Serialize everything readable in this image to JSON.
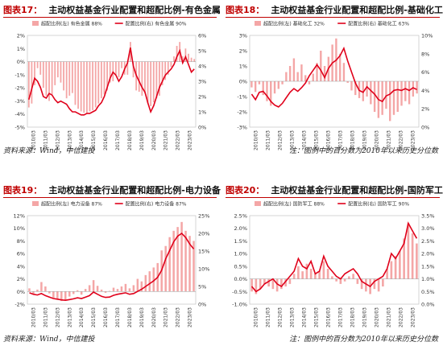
{
  "page": {
    "source_text_left": "资料来源：Wind，中信建投",
    "note_text_right": "注：图例中的百分数为2010年以来历史分位数",
    "source_text_left2": "资料来源：Wind，中信建投",
    "note_text_right2": "注：图例中的百分数为2010年以来历史分位数"
  },
  "panels": [
    {
      "num": "图表17：",
      "title": "主动权益基金行业配置和超配比例-有色金属"
    },
    {
      "num": "图表18：",
      "title": "主动权益基金行业配置和超配比例-基础化工"
    },
    {
      "num": "图表19：",
      "title": "主动权益基金行业配置和超配比例-电力设备"
    },
    {
      "num": "图表20：",
      "title": "主动权益基金行业配置和超配比例-国防军工"
    }
  ],
  "colors": {
    "bar": "#f4a6a6",
    "line": "#e0001a",
    "title_red": "#c00000"
  },
  "chart_data": [
    {
      "type": "bar+line",
      "x_ticks": [
        "2010/03",
        "2011/03",
        "2012/03",
        "2013/03",
        "2014/03",
        "2015/03",
        "2016/03",
        "2017/03",
        "2018/03",
        "2019/03",
        "2020/03",
        "2021/03",
        "2022/03",
        "2023/03"
      ],
      "series": [
        {
          "name": "超配比例(左) 有色金属 88%",
          "axis": "left",
          "type": "bar",
          "values": [
            -3.5,
            -3.2,
            -1.8,
            -0.5,
            -1.0,
            -2.0,
            -2.6,
            -3.0,
            -2.5,
            -1.8,
            -1.2,
            -1.6,
            -2.2,
            -2.8,
            -2.6,
            -2.4,
            -3.3,
            -3.6,
            -3.8,
            -3.9,
            -3.9,
            -3.8,
            -3.7,
            -3.5,
            -3.2,
            -2.8,
            -2.5,
            -2.2,
            -1.6,
            -1.5,
            -1.0,
            -1.2,
            -0.5,
            -1.0,
            -1.0,
            1.5,
            -1.2,
            -2.2,
            -2.3,
            -2.6,
            -2.4,
            -3.2,
            -3.4,
            -3.1,
            -2.8,
            -2.6,
            -1.8,
            -1.4,
            -1.0,
            -0.4,
            0.4,
            1.2,
            1.5,
            0.4,
            1.0,
            0.6,
            0.3,
            0.2
          ]
        },
        {
          "name": "配置比例(右) 有色金属 90%",
          "axis": "right",
          "type": "line",
          "values": [
            1.8,
            2.5,
            3.2,
            3.0,
            2.6,
            2.0,
            1.9,
            2.2,
            2.1,
            1.8,
            1.6,
            1.7,
            1.6,
            1.5,
            1.2,
            1.0,
            1.0,
            0.9,
            0.8,
            0.8,
            0.9,
            0.9,
            1.0,
            1.1,
            1.4,
            1.6,
            2.0,
            2.6,
            3.2,
            3.6,
            3.4,
            3.0,
            3.3,
            3.8,
            4.2,
            5.2,
            4.0,
            3.4,
            3.0,
            2.6,
            2.3,
            1.6,
            1.0,
            1.4,
            2.0,
            2.6,
            3.0,
            3.4,
            3.6,
            3.8,
            4.1,
            4.6,
            5.0,
            4.2,
            4.6,
            4.1,
            3.6,
            3.8
          ]
        }
      ],
      "ylim_left": [
        -5,
        2
      ],
      "ylim_right": [
        0,
        6
      ],
      "yticks_left": [
        "-5%",
        "-4%",
        "-3%",
        "-2%",
        "-1%",
        "0%",
        "1%",
        "2%"
      ],
      "yticks_right": [
        "0%",
        "1%",
        "2%",
        "3%",
        "4%",
        "5%",
        "6%"
      ]
    },
    {
      "type": "bar+line",
      "x_ticks": [
        "2010/03",
        "2011/03",
        "2012/03",
        "2013/03",
        "2014/03",
        "2015/03",
        "2016/03",
        "2017/03",
        "2018/03",
        "2019/03",
        "2020/03",
        "2021/03",
        "2022/03",
        "2023/03"
      ],
      "series": [
        {
          "name": "超配比例(左) 基础化工 32%",
          "axis": "left",
          "type": "bar",
          "values": [
            -0.4,
            -0.7,
            -0.2,
            -0.9,
            -1.3,
            -1.6,
            -0.8,
            -0.5,
            -0.2,
            0.6,
            1.0,
            1.5,
            0.6,
            1.1,
            0.4,
            -0.2,
            0.5,
            1.2,
            2.0,
            1.0,
            1.6,
            2.4,
            2.8,
            1.8,
            1.2,
            -0.1,
            -0.6,
            -0.9,
            -1.1,
            -1.3,
            -1.0,
            -1.5,
            -2.0,
            -2.4,
            -2.2,
            -1.8,
            -2.6,
            -2.2,
            -2.0,
            -1.6,
            -1.3,
            -1.5,
            -1.0,
            -0.8
          ]
        },
        {
          "name": "配置比例(右) 基础化工 63%",
          "axis": "right",
          "type": "line",
          "values": [
            3.6,
            3.0,
            3.8,
            3.9,
            3.4,
            2.8,
            2.4,
            2.2,
            2.6,
            3.2,
            3.8,
            4.2,
            3.9,
            4.3,
            4.8,
            5.6,
            6.2,
            6.8,
            6.2,
            5.4,
            6.4,
            7.0,
            7.3,
            7.8,
            8.6,
            7.2,
            6.0,
            4.8,
            4.0,
            3.8,
            4.4,
            4.0,
            3.6,
            3.0,
            2.8,
            3.4,
            3.6,
            4.0,
            4.1,
            4.0,
            4.2,
            4.0,
            4.3,
            4.1
          ]
        }
      ],
      "ylim_left": [
        -3,
        3
      ],
      "ylim_right": [
        0,
        10
      ],
      "yticks_left": [
        "-3%",
        "-2%",
        "-1%",
        "0%",
        "1%",
        "2%",
        "3%"
      ],
      "yticks_right": [
        "0%",
        "2%",
        "4%",
        "6%",
        "8%",
        "10%"
      ]
    },
    {
      "type": "bar+line",
      "x_ticks": [
        "2010/03",
        "2011/03",
        "2012/03",
        "2013/03",
        "2014/03",
        "2015/03",
        "2016/03",
        "2017/03",
        "2018/03",
        "2019/03",
        "2020/03",
        "2021/03",
        "2022/03",
        "2023/03"
      ],
      "series": [
        {
          "name": "超配比例(左) 电力设备 87%",
          "axis": "left",
          "type": "bar",
          "values": [
            0.5,
            -0.5,
            0.3,
            1.5,
            0.8,
            -0.3,
            -1.0,
            -1.2,
            -1.5,
            -1.3,
            -0.8,
            -0.4,
            0.2,
            -0.5,
            0.4,
            1.0,
            1.8,
            0.9,
            0.3,
            -0.2,
            0.1,
            0.6,
            0.4,
            0.8,
            1.2,
            0.5,
            1.0,
            2.0,
            1.6,
            2.6,
            3.2,
            3.8,
            4.5,
            6.5,
            7.2,
            8.6,
            9.6,
            10.2,
            11.0,
            9.6,
            8.8,
            8.0
          ]
        },
        {
          "name": "配置比例(右) 电力设备 87%",
          "axis": "right",
          "type": "line",
          "values": [
            3.2,
            2.8,
            2.6,
            3.0,
            2.4,
            2.0,
            1.6,
            1.4,
            1.2,
            1.1,
            1.3,
            1.5,
            1.8,
            1.6,
            2.0,
            2.4,
            3.4,
            2.8,
            2.2,
            1.9,
            2.0,
            2.5,
            2.8,
            3.0,
            3.2,
            2.8,
            3.0,
            3.6,
            4.2,
            5.0,
            5.8,
            6.6,
            7.6,
            9.6,
            12.8,
            15.2,
            17.6,
            19.2,
            20.0,
            18.8,
            17.0,
            15.6
          ]
        }
      ],
      "ylim_left": [
        -2,
        12
      ],
      "ylim_right": [
        0,
        25
      ],
      "yticks_left": [
        "-2%",
        "0%",
        "2%",
        "4%",
        "6%",
        "8%",
        "10%",
        "12%"
      ],
      "yticks_right": [
        "0%",
        "5%",
        "10%",
        "15%",
        "20%",
        "25%"
      ]
    },
    {
      "type": "bar+line",
      "x_ticks": [
        "2010/03",
        "2011/03",
        "2012/03",
        "2013/03",
        "2014/03",
        "2015/03",
        "2016/03",
        "2017/03",
        "2018/03",
        "2019/03",
        "2020/03",
        "2021/03",
        "2022/03",
        "2023/03"
      ],
      "series": [
        {
          "name": "超配比例(左) 国防军工 88%",
          "axis": "left",
          "type": "bar",
          "values": [
            -0.5,
            -0.6,
            -0.4,
            -0.2,
            -0.3,
            -0.4,
            -0.5,
            -0.4,
            -0.3,
            -0.2,
            0.2,
            0.5,
            0.3,
            0.6,
            0.4,
            0.2,
            0.3,
            0.7,
            0.4,
            0.1,
            -0.1,
            -0.2,
            -0.1,
            0.1,
            0.2,
            -0.2,
            -0.4,
            -0.5,
            -0.6,
            -0.4,
            -0.5,
            -0.3,
            0.4,
            0.7,
            0.9,
            1.1,
            1.6,
            2.2,
            1.8,
            1.4
          ]
        },
        {
          "name": "配置比例(右) 国防军工 90%",
          "axis": "right",
          "type": "line",
          "values": [
            0.7,
            0.5,
            0.6,
            0.8,
            0.9,
            1.0,
            0.8,
            0.7,
            0.9,
            1.1,
            1.3,
            1.8,
            1.5,
            1.4,
            1.7,
            1.2,
            1.3,
            1.9,
            1.5,
            1.3,
            1.1,
            1.0,
            1.2,
            1.3,
            1.4,
            1.2,
            0.9,
            0.8,
            0.7,
            0.9,
            1.0,
            1.1,
            1.4,
            2.0,
            1.8,
            2.1,
            2.4,
            3.2,
            2.9,
            2.6
          ]
        }
      ],
      "ylim_left": [
        -1,
        2.5
      ],
      "ylim_right": [
        0,
        3.5
      ],
      "yticks_left": [
        "-1.0%",
        "-0.5%",
        "0.0%",
        "0.5%",
        "1.0%",
        "1.5%",
        "2.0%",
        "2.5%"
      ],
      "yticks_right": [
        "0.0%",
        "0.5%",
        "1.0%",
        "1.5%",
        "2.0%",
        "2.5%",
        "3.0%",
        "3.5%"
      ]
    }
  ]
}
